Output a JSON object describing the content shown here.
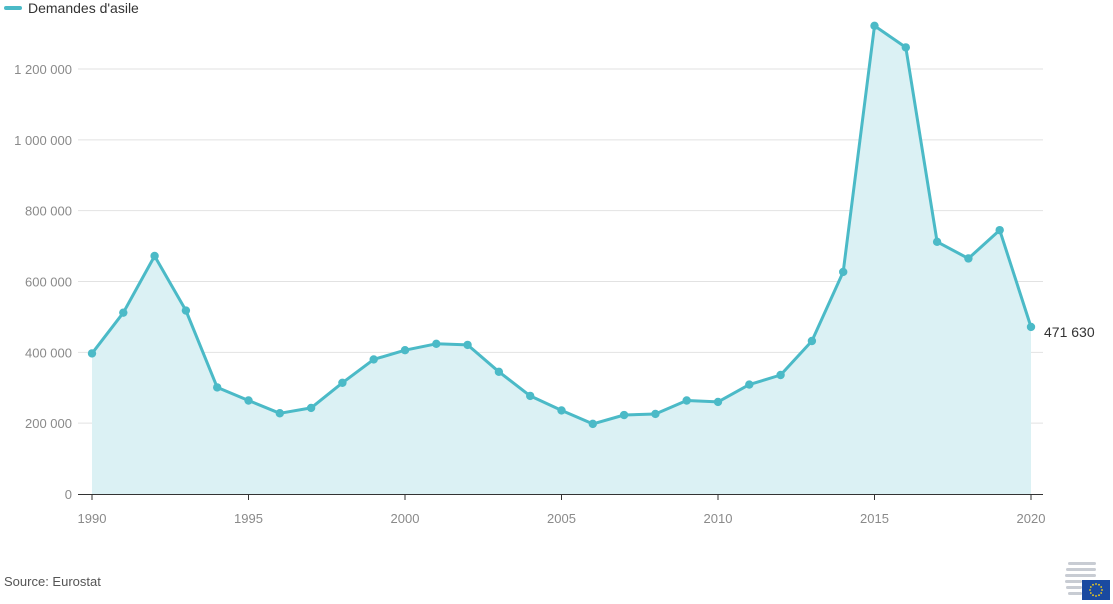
{
  "legend": {
    "label": "Demandes d'asile"
  },
  "source": {
    "text": "Source: Eurostat"
  },
  "colors": {
    "line": "#4bbac7",
    "fill": "#dbf1f4",
    "grid": "#e2e2e2",
    "axis": "#333333",
    "tick_text": "#8a8a8a"
  },
  "chart_data": {
    "type": "area",
    "x": [
      1990,
      1991,
      1992,
      1993,
      1994,
      1995,
      1996,
      1997,
      1998,
      1999,
      2000,
      2001,
      2002,
      2003,
      2004,
      2005,
      2006,
      2007,
      2008,
      2009,
      2010,
      2011,
      2012,
      2013,
      2014,
      2015,
      2016,
      2017,
      2018,
      2019,
      2020
    ],
    "series": [
      {
        "name": "Demandes d'asile",
        "values": [
          397000,
          512000,
          672000,
          518000,
          301000,
          264000,
          228000,
          243000,
          314000,
          380000,
          406000,
          424000,
          421000,
          345000,
          277000,
          236000,
          198000,
          223000,
          226000,
          264000,
          260000,
          309000,
          336000,
          432000,
          627000,
          1322000,
          1261000,
          712000,
          665000,
          745000,
          471630
        ]
      }
    ],
    "xticks": [
      "1990",
      "1995",
      "2000",
      "2005",
      "2010",
      "2015",
      "2020"
    ],
    "yticks": [
      "0",
      "200 000",
      "400 000",
      "600 000",
      "800 000",
      "1 000 000",
      "1 200 000"
    ],
    "ylim": [
      0,
      1200000
    ],
    "xlim": [
      1990,
      2020
    ],
    "end_label": "471 630",
    "grid": true,
    "legend_position": "top-left"
  }
}
